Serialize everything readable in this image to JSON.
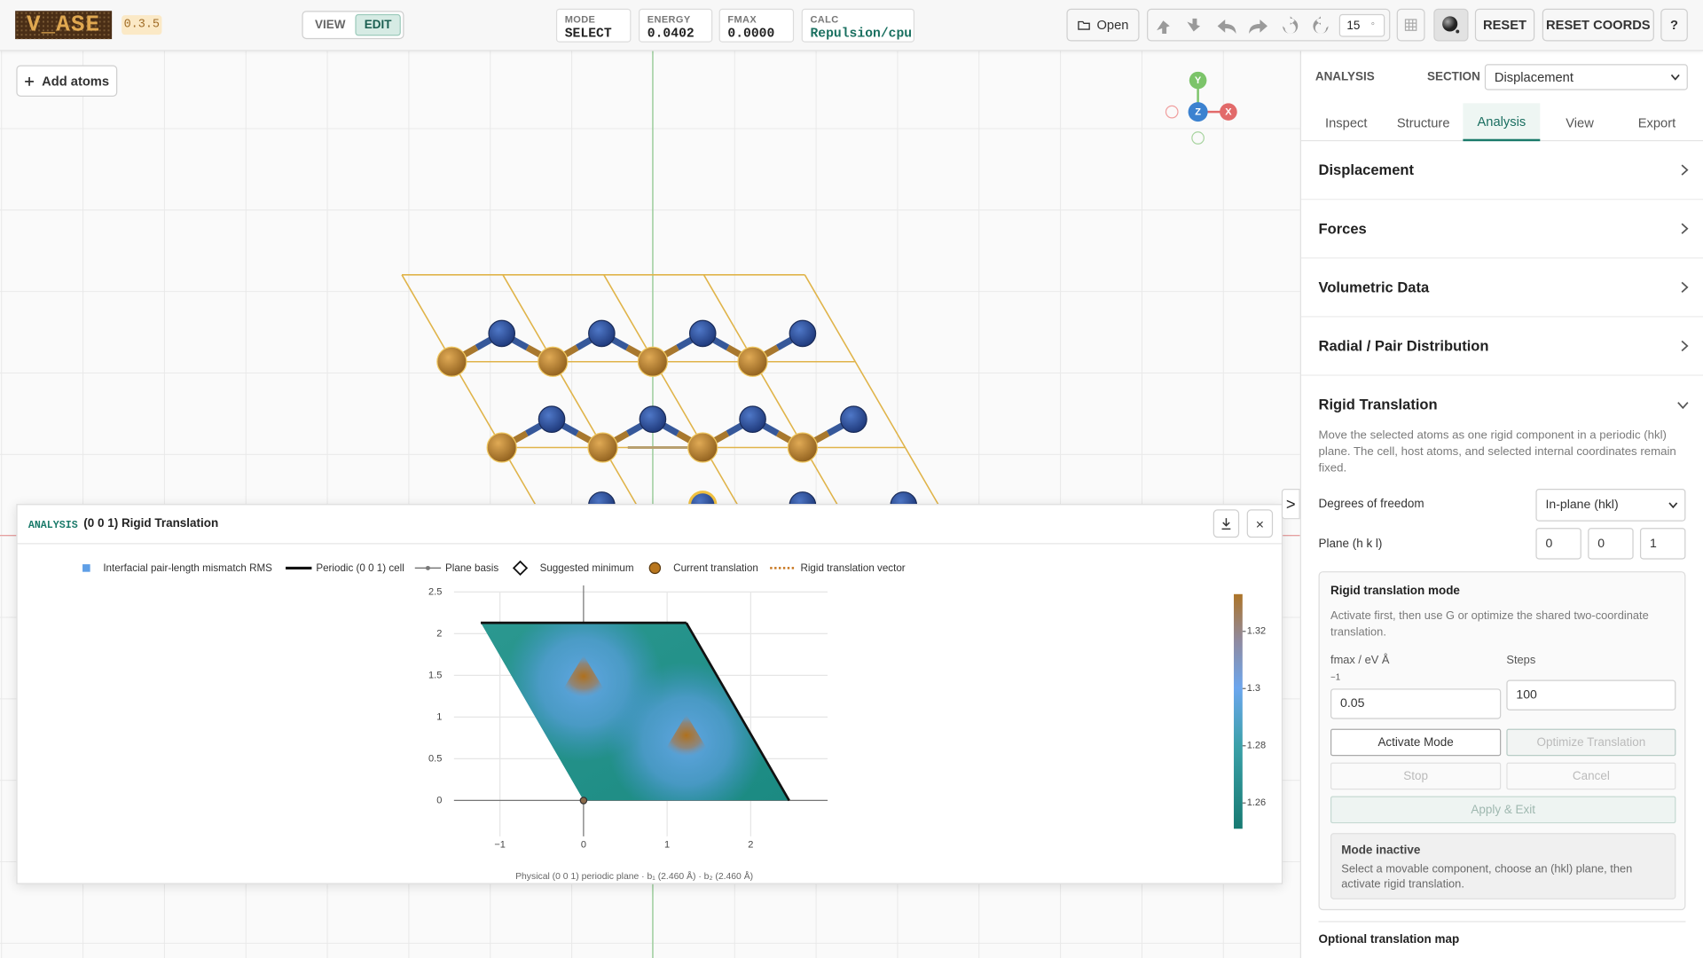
{
  "app": {
    "logo": "V_ASE",
    "version": "0.3.5"
  },
  "toolbar": {
    "view": "VIEW",
    "edit": "EDIT",
    "status": [
      {
        "label": "MODE",
        "value": "SELECT"
      },
      {
        "label": "ENERGY",
        "value": "0.0402"
      },
      {
        "label": "FMAX",
        "value": "0.0000"
      },
      {
        "label": "CALC",
        "value": "Repulsion/cpu"
      }
    ],
    "open": "Open",
    "step": "15",
    "step_unit": "°",
    "reset": "RESET",
    "reset_coords": "RESET COORDS",
    "help": "?"
  },
  "viewport": {
    "add_atoms": "Add atoms",
    "gizmo": {
      "y": "Y",
      "z": "Z",
      "x": "X"
    },
    "collapse": ">"
  },
  "sidebar": {
    "header": "ANALYSIS",
    "section_label": "SECTION",
    "section_value": "Displacement",
    "tabs": [
      "Inspect",
      "Structure",
      "Analysis",
      "View",
      "Export"
    ],
    "accordion": [
      "Displacement",
      "Forces",
      "Volumetric Data",
      "Radial / Pair Distribution",
      "Rigid Translation"
    ],
    "rigid": {
      "description": "Move the selected atoms as one rigid component in a periodic (hkl) plane. The cell, host atoms, and selected internal coordinates remain fixed.",
      "dof_label": "Degrees of freedom",
      "dof_value": "In-plane (hkl)",
      "plane_label": "Plane (h k l)",
      "plane": [
        "0",
        "0",
        "1"
      ],
      "mode_title": "Rigid translation mode",
      "mode_text": "Activate first, then use G or optimize the shared two-coordinate translation.",
      "fmax_label": "fmax / eV Å",
      "fmax_exp": "−1",
      "fmax_value": "0.05",
      "steps_label": "Steps",
      "steps_value": "100",
      "activate": "Activate Mode",
      "optimize": "Optimize Translation",
      "stop": "Stop",
      "cancel": "Cancel",
      "apply": "Apply & Exit",
      "status_title": "Mode inactive",
      "status_text": "Select a movable component, choose an (hkl) plane, then activate rigid translation."
    },
    "optional_map": "Optional translation map"
  },
  "analysis_panel": {
    "tag": "ANALYSIS",
    "title": "(0 0 1) Rigid Translation",
    "close": "×",
    "legend": [
      "Interfacial pair-length mismatch RMS",
      "Periodic (0 0 1) cell",
      "Plane basis",
      "Suggested minimum",
      "Current translation",
      "Rigid translation vector"
    ],
    "chart": {
      "type": "heatmap",
      "xlim": [
        -1.55,
        2.92
      ],
      "ylim": [
        -0.43,
        2.5
      ],
      "xticks": [
        {
          "value": -1,
          "label": "−1"
        },
        0,
        1,
        2
      ],
      "yticks": [
        0,
        0.5,
        1,
        1.5,
        2,
        2.5
      ],
      "cell": {
        "b1": [
          2.46,
          0
        ],
        "b2": [
          -1.23,
          2.13
        ]
      },
      "peaks": [
        [
          0,
          1.42
        ],
        [
          1.23,
          0.71
        ]
      ],
      "current": [
        0,
        0
      ],
      "colorbar": {
        "lim": [
          1.251,
          1.333
        ],
        "ticks": [
          1.26,
          1.28,
          1.3,
          1.32
        ]
      },
      "caption": "Physical (0 0 1) periodic plane · b₁ (2.460 Å) · b₂ (2.460 Å)"
    }
  }
}
